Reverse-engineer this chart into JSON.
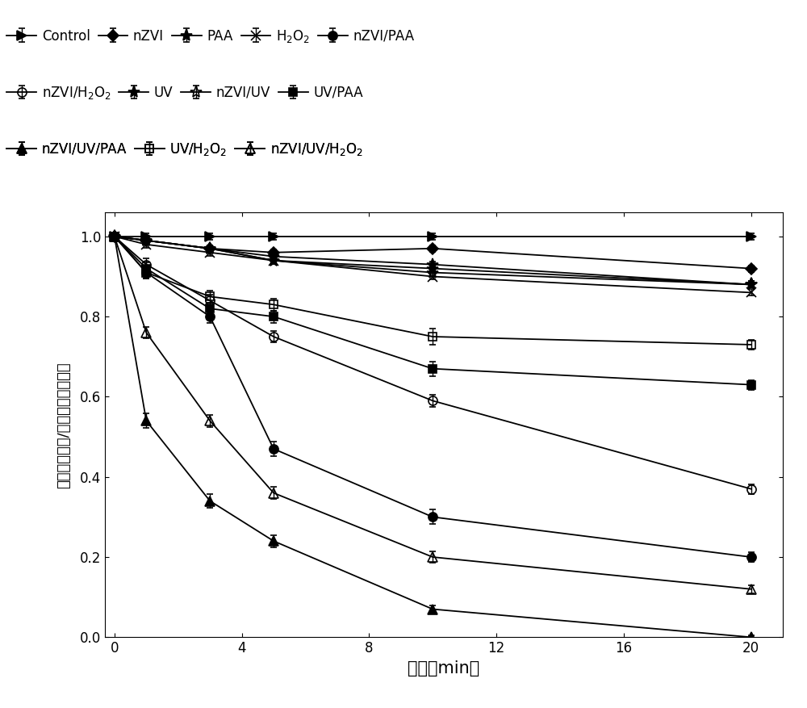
{
  "title": "",
  "xlabel": "时间（min）",
  "ylabel": "蕃旋醓素浓度/蕃旋醓素初始浓度",
  "x_ticks": [
    0,
    4,
    8,
    12,
    16,
    20
  ],
  "xlim": [
    -0.3,
    21
  ],
  "ylim": [
    0.0,
    1.06
  ],
  "y_ticks": [
    0.0,
    0.2,
    0.4,
    0.6,
    0.8,
    1.0
  ],
  "series": [
    {
      "label": "Control",
      "x": [
        0,
        1,
        3,
        5,
        10,
        20
      ],
      "y": [
        1.0,
        1.0,
        1.0,
        1.0,
        1.0,
        1.0
      ],
      "yerr": [
        0.008,
        0.008,
        0.008,
        0.008,
        0.008,
        0.008
      ],
      "marker": ">",
      "fillstyle": "full",
      "color": "black",
      "linestyle": "-"
    },
    {
      "label": "nZVI",
      "x": [
        0,
        1,
        3,
        5,
        10,
        20
      ],
      "y": [
        1.0,
        0.99,
        0.97,
        0.96,
        0.97,
        0.92
      ],
      "yerr": [
        0.008,
        0.008,
        0.008,
        0.008,
        0.008,
        0.008
      ],
      "marker": "D",
      "fillstyle": "full",
      "color": "black",
      "linestyle": "-"
    },
    {
      "label": "PAA",
      "x": [
        0,
        1,
        3,
        5,
        10,
        20
      ],
      "y": [
        1.0,
        0.99,
        0.97,
        0.95,
        0.93,
        0.88
      ],
      "yerr": [
        0.008,
        0.008,
        0.008,
        0.008,
        0.008,
        0.008
      ],
      "marker": "p",
      "fillstyle": "full",
      "color": "black",
      "linestyle": "-"
    },
    {
      "label": "H$_2$O$_2$",
      "x": [
        0,
        1,
        3,
        5,
        10,
        20
      ],
      "y": [
        1.0,
        0.98,
        0.96,
        0.94,
        0.9,
        0.86
      ],
      "yerr": [
        0.008,
        0.008,
        0.008,
        0.008,
        0.008,
        0.008
      ],
      "marker": "x",
      "fillstyle": "full",
      "color": "black",
      "linestyle": "-"
    },
    {
      "label": "nZVI/PAA",
      "x": [
        0,
        1,
        3,
        5,
        10,
        20
      ],
      "y": [
        1.0,
        0.91,
        0.8,
        0.47,
        0.3,
        0.2
      ],
      "yerr": [
        0.008,
        0.015,
        0.015,
        0.018,
        0.018,
        0.012
      ],
      "marker": "o",
      "fillstyle": "full",
      "color": "black",
      "linestyle": "-"
    },
    {
      "label": "nZVI/H$_2$O$_2$",
      "x": [
        0,
        1,
        3,
        5,
        10,
        20
      ],
      "y": [
        1.0,
        0.93,
        0.84,
        0.75,
        0.59,
        0.37
      ],
      "yerr": [
        0.008,
        0.015,
        0.015,
        0.015,
        0.015,
        0.012
      ],
      "marker": "o",
      "fillstyle": "none",
      "color": "black",
      "linestyle": "-"
    },
    {
      "label": "UV",
      "x": [
        0,
        1,
        3,
        5,
        10,
        20
      ],
      "y": [
        1.0,
        0.99,
        0.97,
        0.94,
        0.92,
        0.88
      ],
      "yerr": [
        0.008,
        0.008,
        0.008,
        0.008,
        0.008,
        0.008
      ],
      "marker": "x",
      "fillstyle": "full",
      "color": "black",
      "linestyle": "-",
      "use_star_marker": true
    },
    {
      "label": "nZVI/UV",
      "x": [
        0,
        1,
        3,
        5,
        10,
        20
      ],
      "y": [
        1.0,
        0.99,
        0.97,
        0.94,
        0.91,
        0.88
      ],
      "yerr": [
        0.008,
        0.008,
        0.008,
        0.008,
        0.008,
        0.008
      ],
      "marker": "^",
      "fillstyle": "none",
      "color": "black",
      "linestyle": "-",
      "use_star_marker": true
    },
    {
      "label": "UV/PAA",
      "x": [
        0,
        1,
        3,
        5,
        10,
        20
      ],
      "y": [
        1.0,
        0.92,
        0.82,
        0.8,
        0.67,
        0.63
      ],
      "yerr": [
        0.008,
        0.015,
        0.015,
        0.015,
        0.018,
        0.012
      ],
      "marker": "s",
      "fillstyle": "full",
      "color": "black",
      "linestyle": "-"
    },
    {
      "label": "nZVI/UV/PAA",
      "x": [
        0,
        1,
        3,
        5,
        10,
        20
      ],
      "y": [
        1.0,
        0.54,
        0.34,
        0.24,
        0.07,
        0.0
      ],
      "yerr": [
        0.008,
        0.018,
        0.018,
        0.015,
        0.01,
        0.005
      ],
      "marker": "^",
      "fillstyle": "full",
      "color": "black",
      "linestyle": "-"
    },
    {
      "label": "UV/H$_2$O$_2$",
      "x": [
        0,
        1,
        3,
        5,
        10,
        20
      ],
      "y": [
        1.0,
        0.91,
        0.85,
        0.83,
        0.75,
        0.73
      ],
      "yerr": [
        0.008,
        0.015,
        0.015,
        0.015,
        0.02,
        0.012
      ],
      "marker": "s",
      "fillstyle": "none",
      "color": "black",
      "linestyle": "-"
    },
    {
      "label": "nZVI/UV/H$_2$O$_2$",
      "x": [
        0,
        1,
        3,
        5,
        10,
        20
      ],
      "y": [
        1.0,
        0.76,
        0.54,
        0.36,
        0.2,
        0.12
      ],
      "yerr": [
        0.008,
        0.015,
        0.015,
        0.015,
        0.015,
        0.01
      ],
      "marker": "^",
      "fillstyle": "none",
      "color": "black",
      "linestyle": "-"
    }
  ],
  "legend_rows": [
    [
      "Control",
      "nZVI",
      "PAA",
      "H$_2$O$_2$",
      "nZVI/PAA"
    ],
    [
      "nZVI/H$_2$O$_2$",
      "UV",
      "nZVI/UV",
      "UV/PAA"
    ],
    [
      "nZVI/UV/PAA",
      "UV/H$_2$O$_2$",
      "nZVI/UV/H$_2$O$_2$"
    ]
  ]
}
